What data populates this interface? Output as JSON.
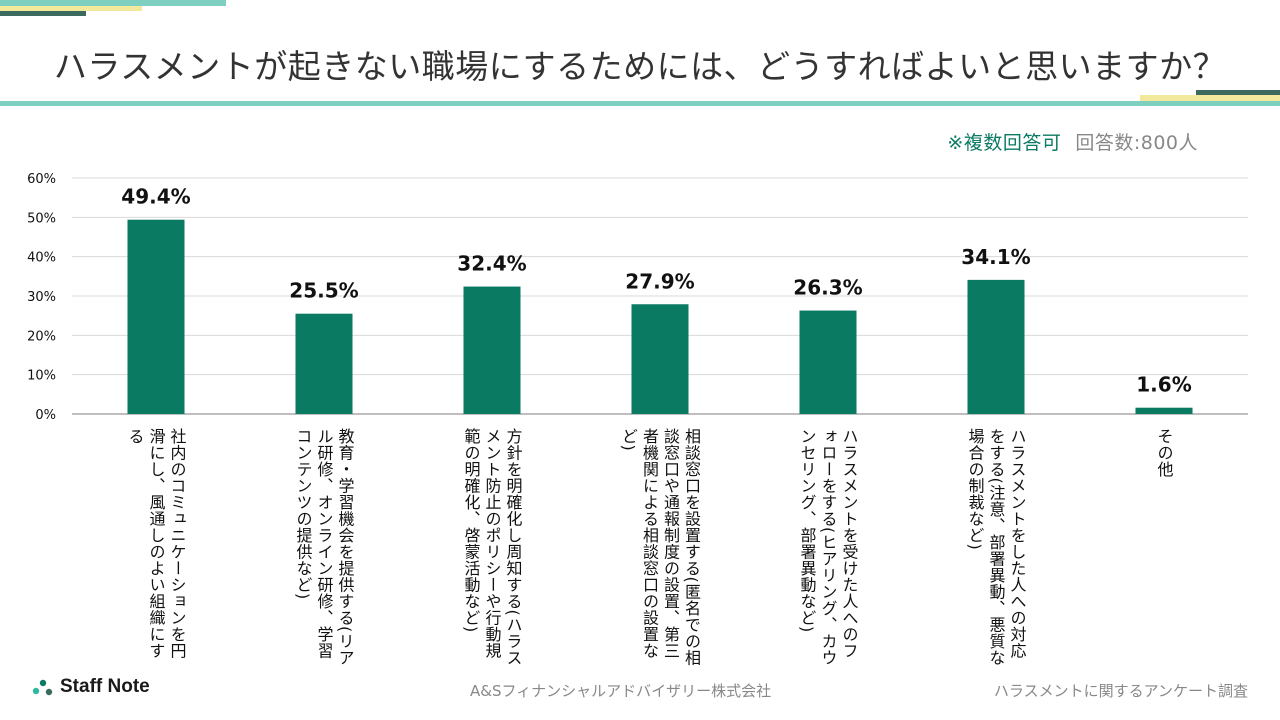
{
  "title": "ハラスメントが起きない職場にするためには、どうすればよいと思いますか？",
  "subtitle": {
    "note": "※複数回答可",
    "respondents": "回答数:800人"
  },
  "colors": {
    "bar": "#0a7a62",
    "accent_teal": "#7fcfc1",
    "accent_dark": "#3d6a5e",
    "accent_yellow": "#f3e99c"
  },
  "chart_data": {
    "type": "bar",
    "title": "ハラスメントが起きない職場にするためには、どうすればよいと思いますか？",
    "xlabel": "",
    "ylabel": "",
    "ylim": [
      0,
      60
    ],
    "yticks": [
      "0%",
      "10%",
      "20%",
      "30%",
      "40%",
      "50%",
      "60%"
    ],
    "grid": true,
    "categories": [
      "社内のコミュニケーションを円滑にし、風通しのよい組織にする",
      "教育・学習機会を提供する(リアル研修、オンライン研修、学習コンテンツの提供など)",
      "方針を明確化し周知する(ハラスメント防止のポリシーや行動規範の明確化、啓蒙活動など)",
      "相談窓口を設置する(匿名での相談窓口や通報制度の設置、第三者機関による相談窓口の設置など)",
      "ハラスメントを受けた人へのフォローをする(ヒアリング、カウンセリング、部署異動など)",
      "ハラスメントをした人への対応をする(注意、部署異動、悪質な場合の制裁など)",
      "その他"
    ],
    "values": [
      49.4,
      25.5,
      32.4,
      27.9,
      26.3,
      34.1,
      1.6
    ],
    "data_labels": [
      "49.4%",
      "25.5%",
      "32.4%",
      "27.9%",
      "26.3%",
      "34.1%",
      "1.6%"
    ]
  },
  "footer": {
    "logo_text": "Staff Note",
    "company": "A&Sフィナンシャルアドバイザリー株式会社",
    "survey": "ハラスメントに関するアンケート調査"
  }
}
